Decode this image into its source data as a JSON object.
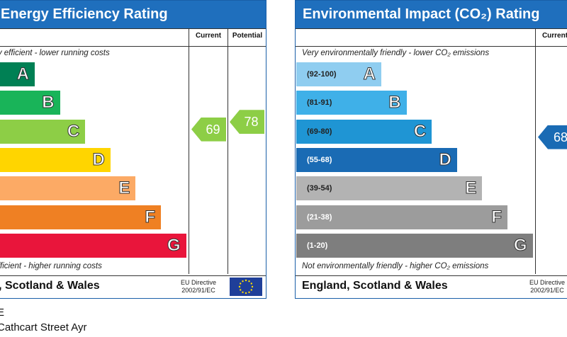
{
  "energy": {
    "title": "Energy Efficiency Rating",
    "col_current": "Current",
    "col_potential": "Potential",
    "top_note": "Very energy efficient - lower running costs",
    "bottom_note": "Not energy efficient - higher running costs",
    "bands": [
      {
        "letter": "A",
        "color": "#008054"
      },
      {
        "letter": "B",
        "color": "#19b459"
      },
      {
        "letter": "C",
        "color": "#8dce46"
      },
      {
        "letter": "D",
        "color": "#ffd500"
      },
      {
        "letter": "E",
        "color": "#fcaa65"
      },
      {
        "letter": "F",
        "color": "#ef8023"
      },
      {
        "letter": "G",
        "color": "#e9153b"
      }
    ],
    "current": {
      "value": "69",
      "band": "C",
      "color": "#8dce46"
    },
    "potential": {
      "value": "78",
      "band": "C",
      "color": "#8dce46"
    },
    "region": "England, Scotland & Wales",
    "directive": "EU Directive",
    "directive_num": "2002/91/EC"
  },
  "env": {
    "title": "Environmental Impact (CO₂) Rating",
    "col_current": "Current",
    "top_note": "Very environmentally friendly - lower CO₂ emissions",
    "bottom_note": "Not environmentally friendly - higher CO₂ emissions",
    "bands": [
      {
        "letter": "A",
        "range": "(92-100)",
        "color": "#8fcdf0"
      },
      {
        "letter": "B",
        "range": "(81-91)",
        "color": "#3fb0e8"
      },
      {
        "letter": "C",
        "range": "(69-80)",
        "color": "#1f95d4"
      },
      {
        "letter": "D",
        "range": "(55-68)",
        "color": "#1a6bb4"
      },
      {
        "letter": "E",
        "range": "(39-54)",
        "color": "#b3b3b3"
      },
      {
        "letter": "F",
        "range": "(21-38)",
        "color": "#9c9c9c"
      },
      {
        "letter": "G",
        "range": "(1-20)",
        "color": "#7e7e7e"
      }
    ],
    "current": {
      "value": "68",
      "band": "D",
      "color": "#1a6bb4"
    },
    "region": "England, Scotland & Wales",
    "directive": "EU Directive",
    "directive_num": "2002/91/EC"
  },
  "captions": [
    "E",
    "Cathcart Street Ayr"
  ]
}
